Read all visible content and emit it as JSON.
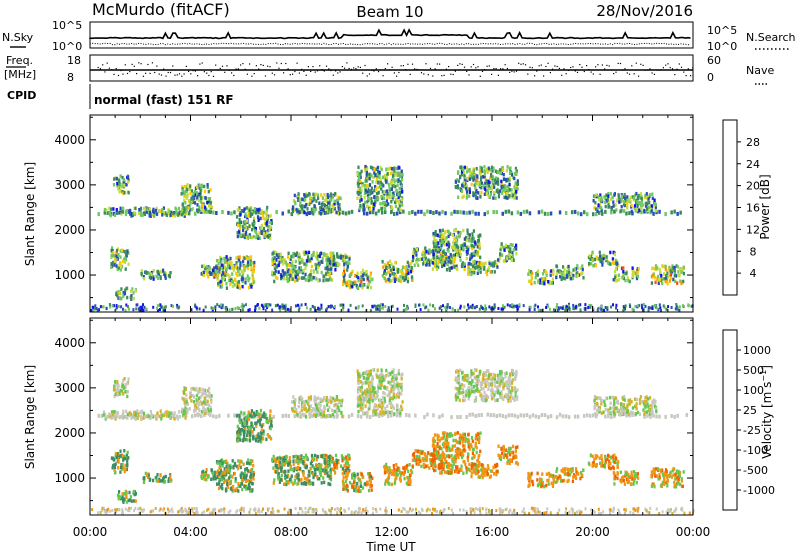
{
  "header": {
    "station": "McMurdo (fitACF)",
    "beam": "Beam 10",
    "date": "28/Nov/2016"
  },
  "status_panels": {
    "nsky_label": "N.Sky",
    "nsearch_label": "N.Search",
    "freq_label_line1": "Freq.",
    "freq_label_line2": "[MHz]",
    "nave_label": "Nave",
    "cpid_label": "CPID",
    "cpid_text": "normal (fast) 151 RF",
    "noise_left_ticks": [
      "10^5",
      "10^0"
    ],
    "noise_right_ticks": [
      "10^5",
      "10^0"
    ],
    "freq_ticks": [
      "18",
      "8"
    ],
    "nave_ticks": [
      "60",
      "0"
    ]
  },
  "colors": {
    "power_scale": [
      "#1414e6",
      "#2850b4",
      "#3c8c5a",
      "#6ec864",
      "#c8dc3c",
      "#ffc800",
      "#ff9600",
      "#ff5000",
      "#e60000"
    ],
    "velocity_scale": [
      "#1e2896",
      "#3264c8",
      "#3c8c64",
      "#64c850",
      "#c8c8c0",
      "#d2b428",
      "#f09614",
      "#f06400",
      "#e61414"
    ]
  },
  "chart_data": [
    {
      "type": "heatmap",
      "title": "",
      "xlabel": "",
      "ylabel": "Slant Range [km]",
      "colorbar_label": "Power [dB]",
      "x_ticks": [
        "00:00",
        "04:00",
        "08:00",
        "12:00",
        "16:00",
        "20:00",
        "00:00"
      ],
      "x_range_hours": [
        0,
        24
      ],
      "ylim": [
        180,
        4550
      ],
      "y_ticks": [
        1000,
        2000,
        3000,
        4000
      ],
      "colorbar_ticks": [
        "28",
        "24",
        "20",
        "16",
        "12",
        "8",
        "4"
      ],
      "color_range_db": [
        0,
        32
      ]
    },
    {
      "type": "heatmap",
      "title": "",
      "xlabel": "Time UT",
      "ylabel": "Slant Range [km]",
      "colorbar_label": "Velocity [m s^-1]",
      "x_ticks": [
        "00:00",
        "04:00",
        "08:00",
        "12:00",
        "16:00",
        "20:00",
        "00:00"
      ],
      "x_range_hours": [
        0,
        24
      ],
      "ylim": [
        180,
        4550
      ],
      "y_ticks": [
        1000,
        2000,
        3000,
        4000
      ],
      "colorbar_ticks": [
        "1000",
        "500",
        "100",
        "25",
        "-25",
        "-100",
        "-500",
        "-1000"
      ]
    }
  ]
}
